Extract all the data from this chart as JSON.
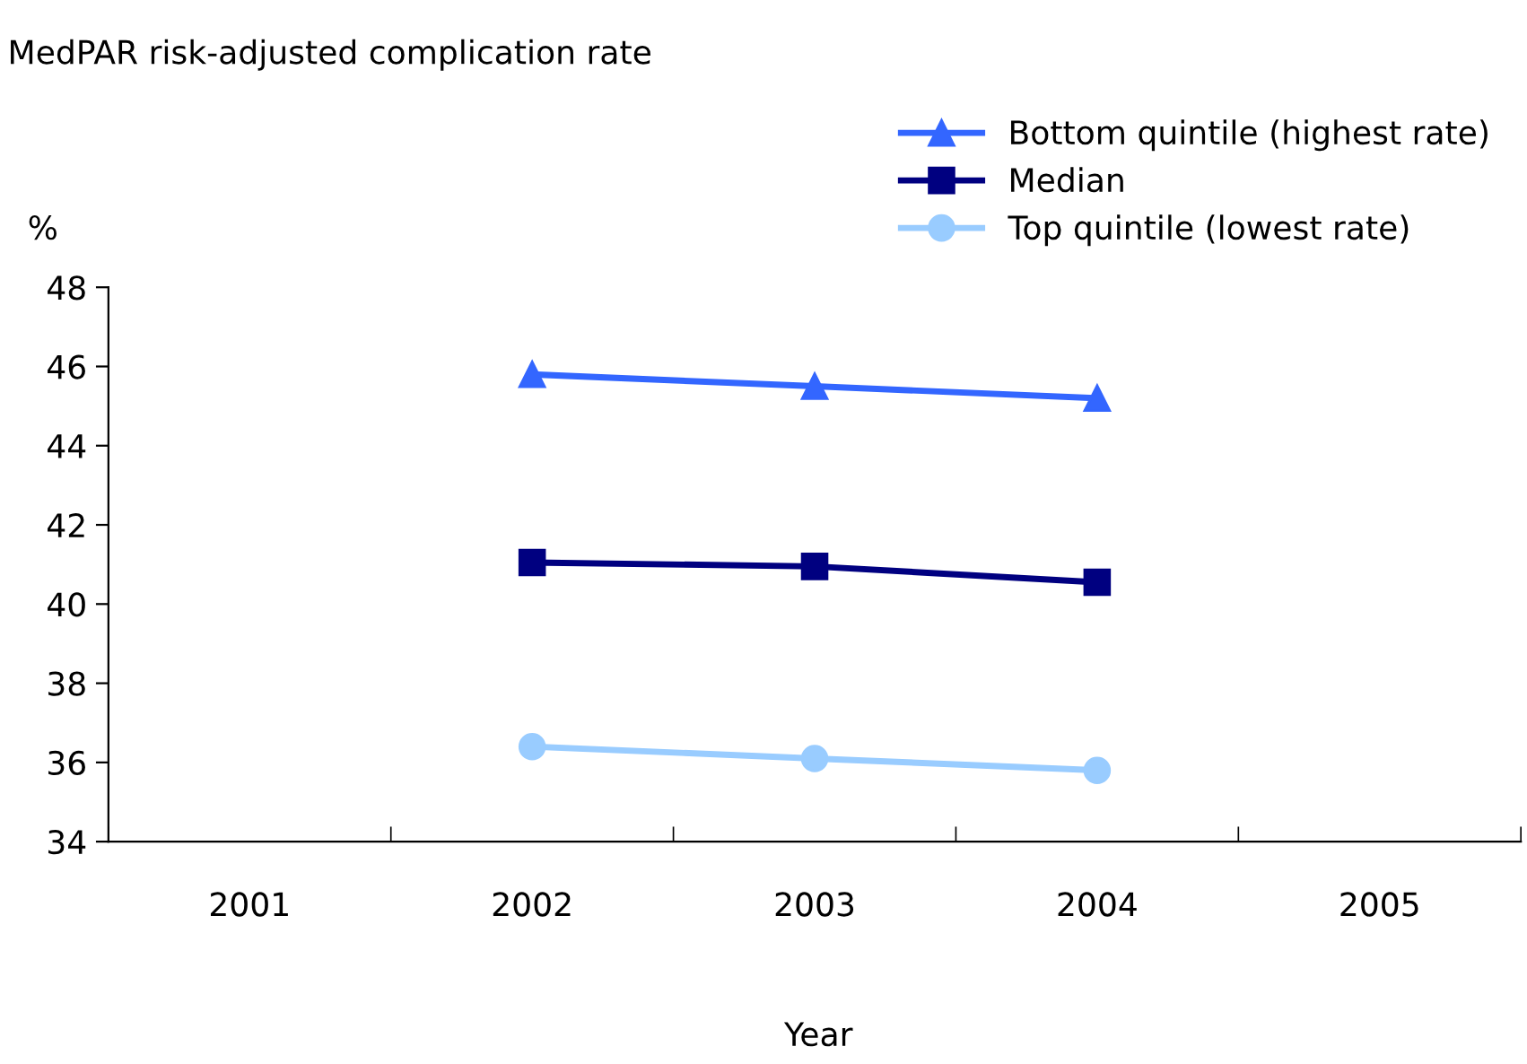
{
  "chart_data": {
    "type": "line",
    "title": "MedPAR risk-adjusted complication rate",
    "xlabel": "Year",
    "ylabel": "%",
    "categories": [
      "2001",
      "2002",
      "2003",
      "2004",
      "2005"
    ],
    "series": [
      {
        "name": "Bottom quintile (highest rate)",
        "color": "#3366ff",
        "marker": "triangle",
        "values": [
          null,
          45.8,
          45.5,
          45.2,
          null
        ]
      },
      {
        "name": "Median",
        "color": "#000080",
        "marker": "square",
        "values": [
          null,
          41.05,
          40.95,
          40.55,
          null
        ]
      },
      {
        "name": "Top quintile (lowest rate)",
        "color": "#99ccff",
        "marker": "circle",
        "values": [
          null,
          36.4,
          36.1,
          35.8,
          null
        ]
      }
    ],
    "ylim": [
      34,
      48
    ],
    "yticks": [
      34,
      36,
      38,
      40,
      42,
      44,
      46,
      48
    ],
    "grid": false,
    "legend": "top right",
    "line_style": "solid"
  }
}
